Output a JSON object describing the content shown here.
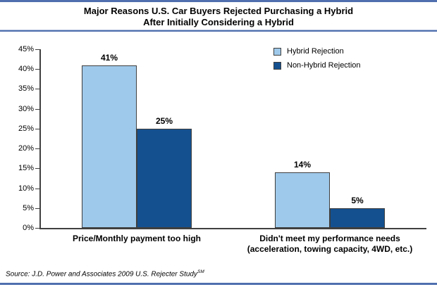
{
  "title": {
    "line1": "Major Reasons U.S. Car Buyers Rejected Purchasing a Hybrid",
    "line2": "After Initially Considering a Hybrid"
  },
  "chart_data": {
    "type": "bar",
    "title": "Major Reasons U.S. Car Buyers Rejected Purchasing a Hybrid After Initially Considering a Hybrid",
    "categories": [
      "Price/Monthly payment too high",
      "Didn't meet my performance needs\n(acceleration, towing capacity, 4WD, etc.)"
    ],
    "series": [
      {
        "name": "Hybrid Rejection",
        "color": "#9FC9EA",
        "values": [
          41,
          14
        ],
        "value_labels": [
          "41%",
          "14%"
        ]
      },
      {
        "name": "Non-Hybrid Rejection",
        "color": "#14508F",
        "values": [
          25,
          5
        ],
        "value_labels": [
          "25%",
          "5%"
        ]
      }
    ],
    "xlabel": "",
    "ylabel": "",
    "ylim": [
      0,
      45
    ],
    "ytick_step": 5,
    "ytick_labels": [
      "0%",
      "5%",
      "10%",
      "15%",
      "20%",
      "25%",
      "30%",
      "35%",
      "40%",
      "45%"
    ],
    "grid": false,
    "legend_position": "top-right"
  },
  "source": {
    "prefix": "Source: J.D. Power and Associates 2009 U.S. Rejecter Study",
    "superscript": "SM"
  },
  "colors": {
    "accent_rule": "#4F6FAE",
    "bar_light": "#9FC9EA",
    "bar_dark": "#14508F",
    "bar_border": "#3F3F3F",
    "axis": "#404040",
    "text": "#000000"
  }
}
